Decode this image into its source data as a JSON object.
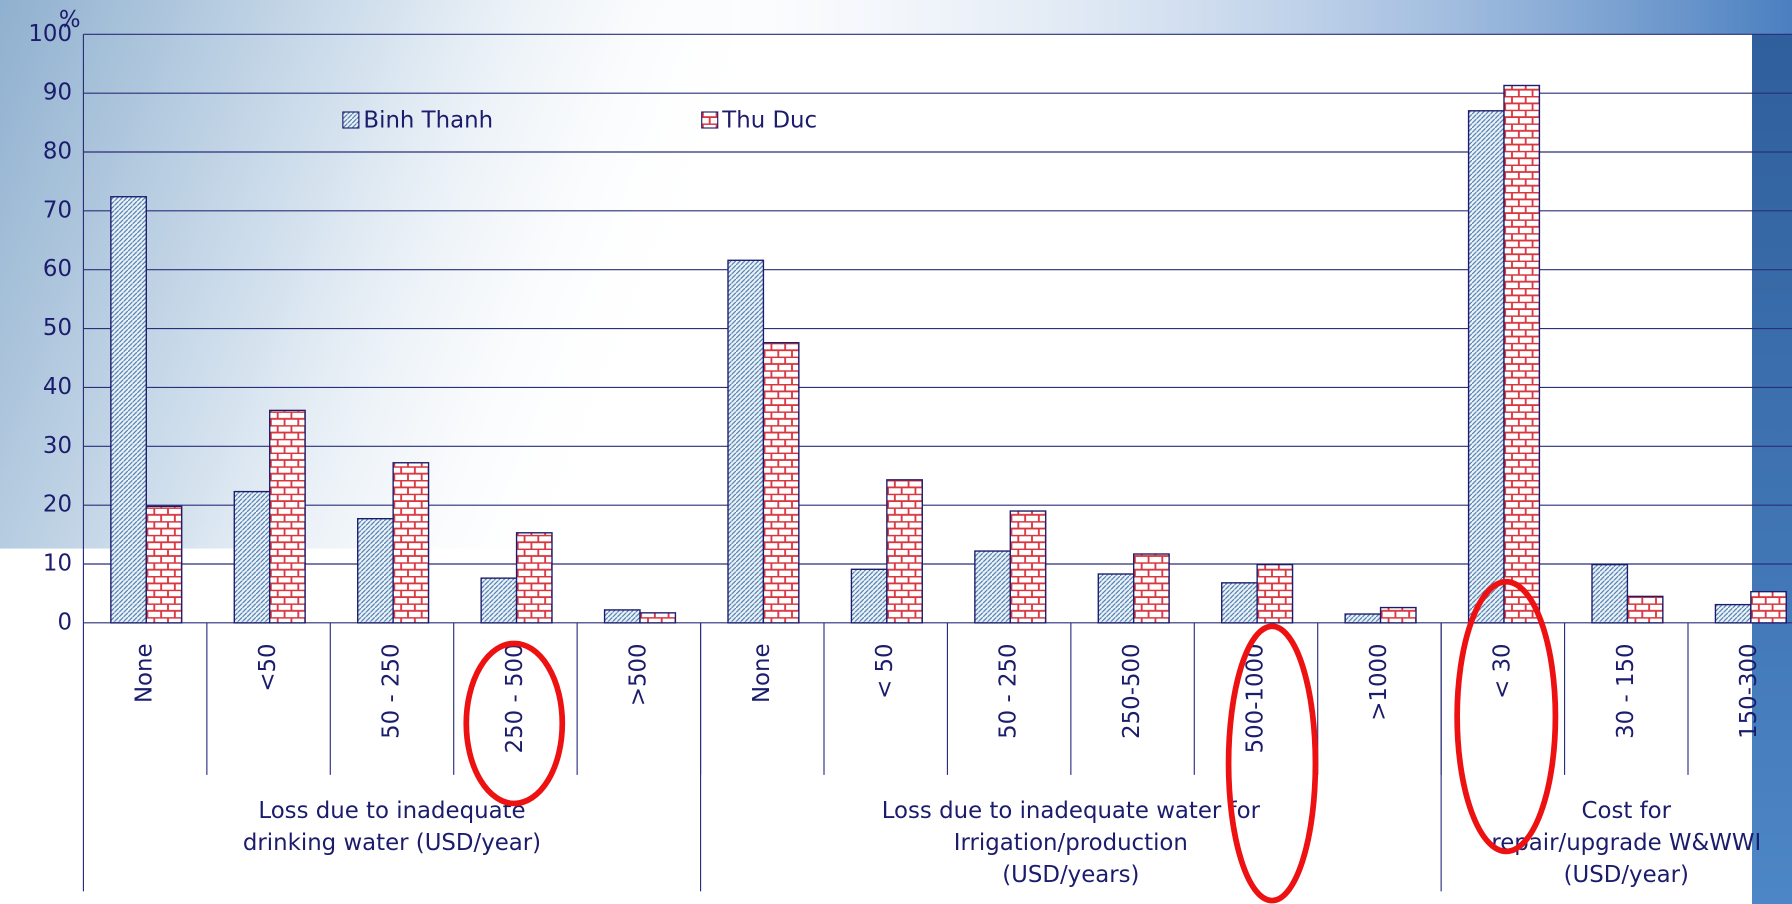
{
  "chart_data": {
    "type": "bar",
    "y_unit": "%",
    "categories": [
      "None",
      "<50",
      "50 - 250",
      "250 - 500",
      ">500",
      "None",
      "< 50",
      "50 - 250",
      "250-500",
      "500-1000",
      ">1000",
      "< 30",
      "30 - 150",
      "150-300"
    ],
    "groups": [
      {
        "label": [
          "Loss due to inadequate",
          "drinking water (USD/year)"
        ],
        "size": 5
      },
      {
        "label": [
          "Loss due to inadequate  water for",
          "Irrigation/production",
          "(USD/years)"
        ],
        "size": 6
      },
      {
        "label": [
          "Cost for",
          "repair/upgrade W&WWI",
          "(USD/year)"
        ],
        "size": 3
      }
    ],
    "series": [
      {
        "name": "Binh Thanh",
        "color": "#9fc0e0",
        "values": [
          72.4,
          22.3,
          17.7,
          7.6,
          2.2,
          61.6,
          9.1,
          12.2,
          8.3,
          6.8,
          1.5,
          87,
          9.9,
          3.1
        ]
      },
      {
        "name": "Thu Duc",
        "color": "#d9363e",
        "values": [
          19.8,
          36.1,
          27.2,
          15.3,
          1.7,
          47.6,
          24.3,
          19,
          11.7,
          9.9,
          2.6,
          91.3,
          4.5,
          5.3
        ]
      }
    ],
    "ylim": [
      0,
      100
    ],
    "yticks": [
      0,
      10,
      20,
      30,
      40,
      50,
      60,
      70,
      80,
      90,
      100
    ],
    "grid": true
  }
}
